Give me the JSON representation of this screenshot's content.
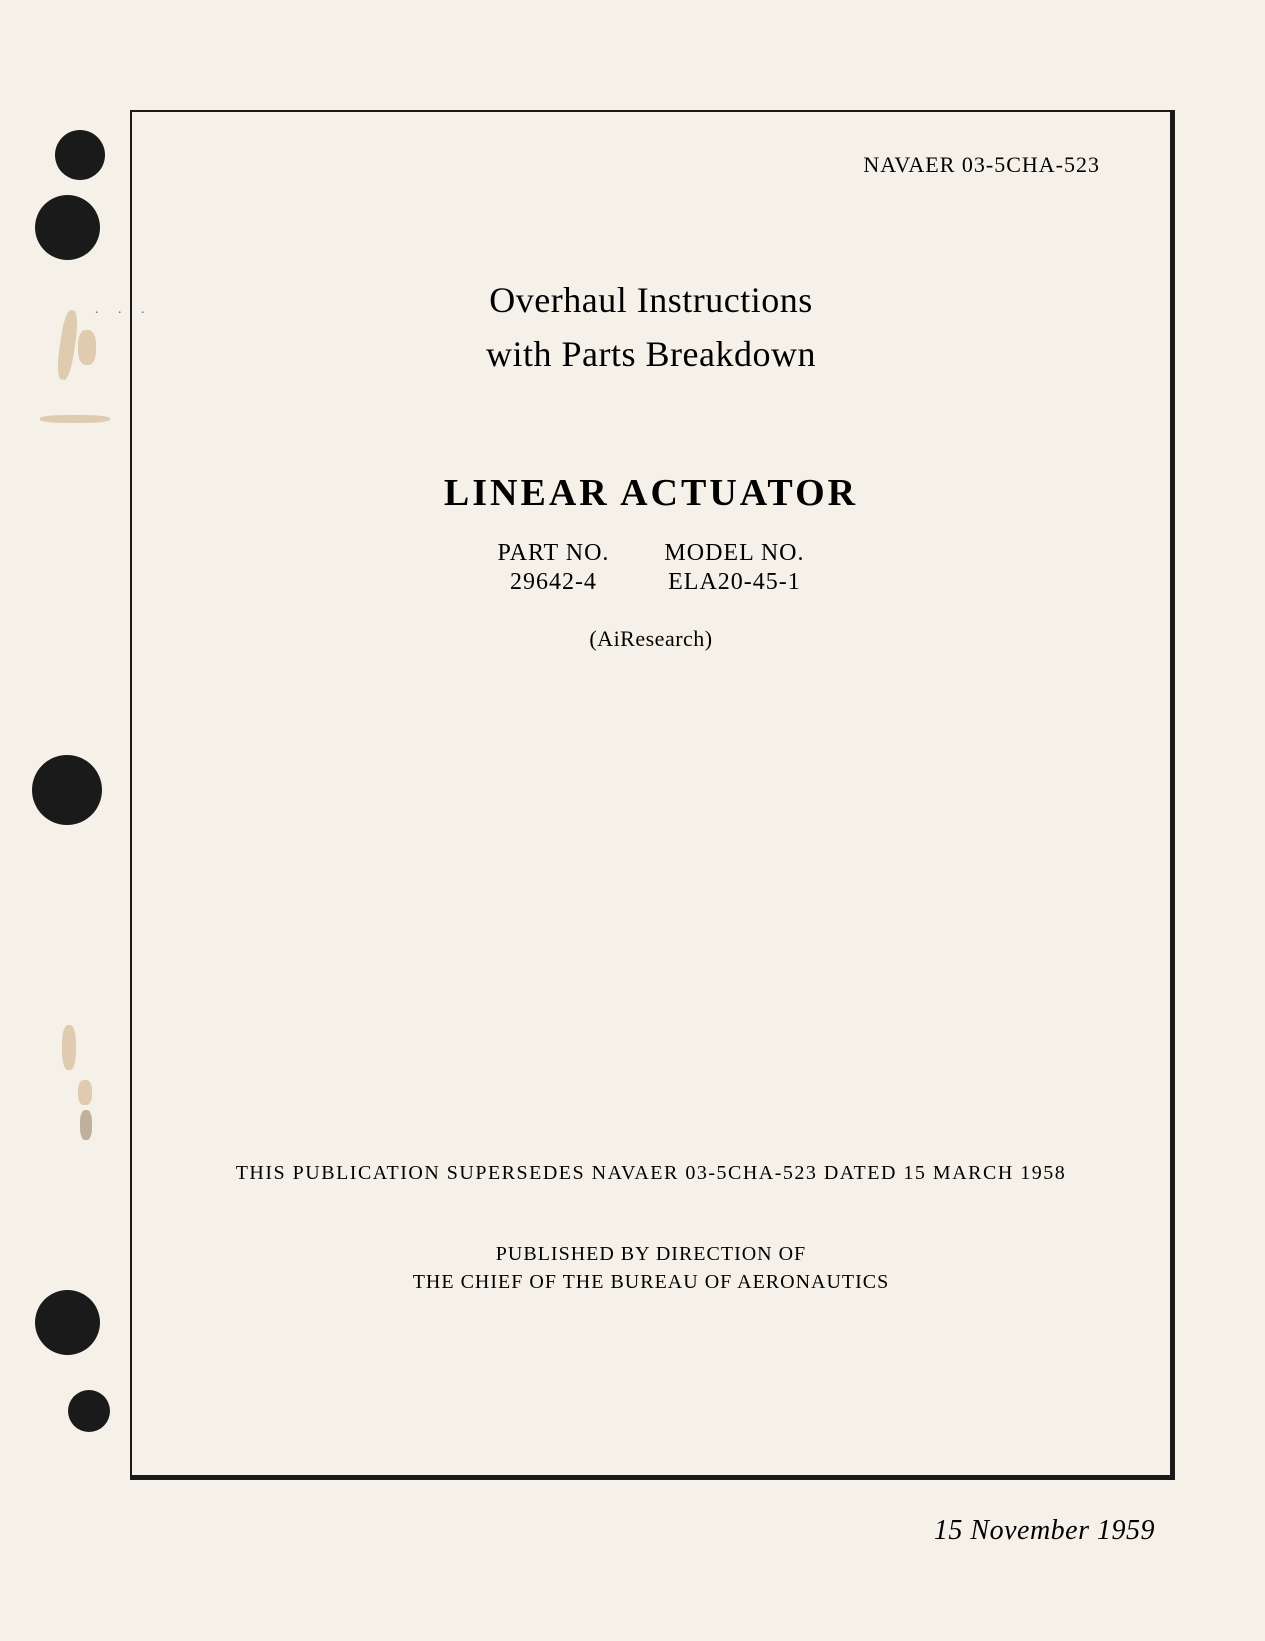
{
  "document": {
    "doc_id": "NAVAER 03-5CHA-523",
    "title_line_1": "Overhaul Instructions",
    "title_line_2": "with Parts Breakdown",
    "subject": "LINEAR  ACTUATOR",
    "part_label": "PART NO.",
    "part_value": "29642-4",
    "model_label": "MODEL NO.",
    "model_value": "ELA20-45-1",
    "manufacturer": "(AiResearch)",
    "supersedes": "THIS PUBLICATION SUPERSEDES NAVAER 03-5CHA-523 DATED 15 MARCH 1958",
    "published_by_line_1": "PUBLISHED BY DIRECTION OF",
    "published_by_line_2": "THE CHIEF OF THE BUREAU OF AERONAUTICS",
    "date": "15 November 1959"
  },
  "styling": {
    "page_bg": "#f5f1e8",
    "text_color": "#1a1a1a",
    "border_color": "#1a1a1a",
    "hole_color": "#1a1a1a",
    "smudge_color": "#c9a878",
    "title_fontsize": 36,
    "subject_fontsize": 38,
    "body_fontsize": 22,
    "date_fontsize": 28
  }
}
